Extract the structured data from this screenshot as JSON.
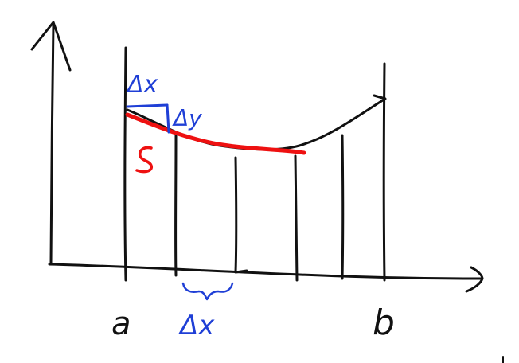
{
  "labels": {
    "left_bound": "a",
    "right_bound": "b",
    "delta_x_top": "Δx",
    "delta_y": "Δy",
    "arc_length": "S",
    "delta_x_bottom": "Δx"
  },
  "colors": {
    "axes_and_curve": "#111111",
    "delta_annotations": "#1f3fd6",
    "arc_segment": "#ee1111"
  }
}
